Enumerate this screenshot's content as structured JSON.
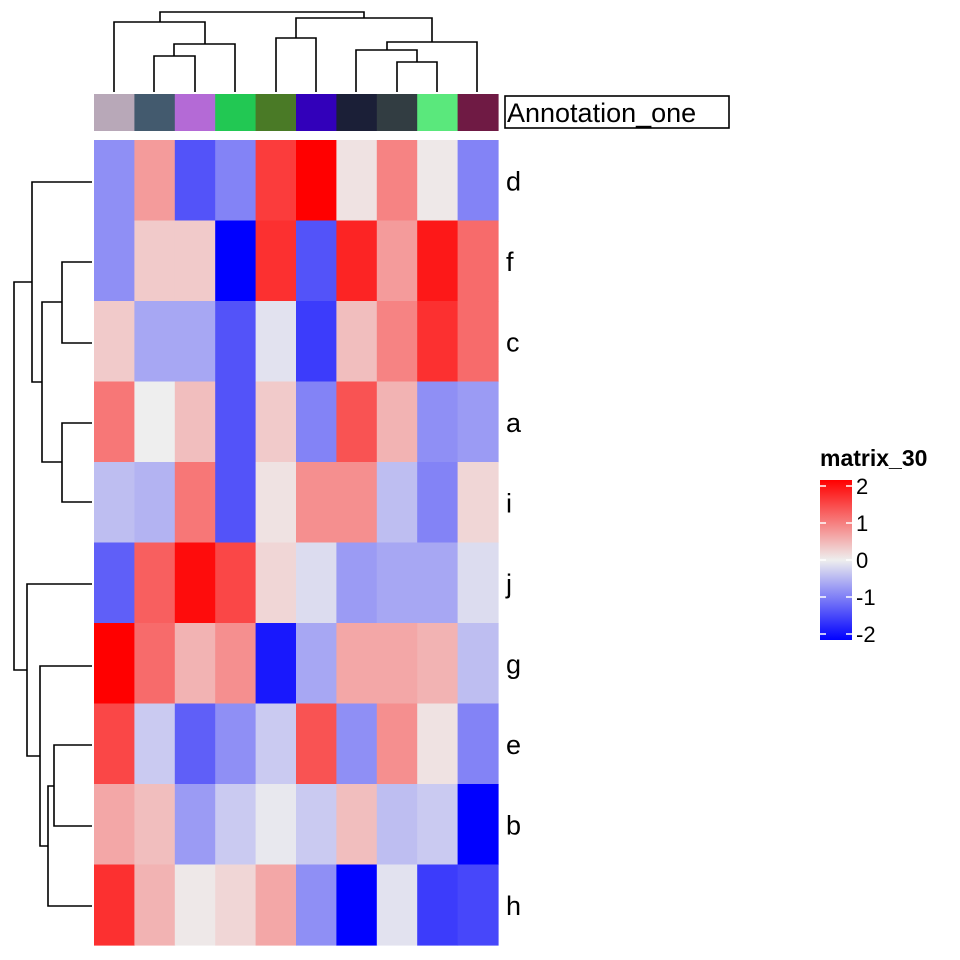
{
  "chart_data": {
    "type": "heatmap",
    "rows": [
      "d",
      "f",
      "c",
      "a",
      "i",
      "j",
      "g",
      "e",
      "b",
      "h"
    ],
    "columns": 10,
    "annotation": {
      "label": "Annotation_one",
      "colors": [
        "#B8A8B8",
        "#435A6E",
        "#B46AD6",
        "#22C853",
        "#4A7A26",
        "#3200BA",
        "#1B1F37",
        "#323D42",
        "#5AE87C",
        "#6F1A44"
      ]
    },
    "values": [
      [
        -0.8,
        0.7,
        -1.3,
        -0.9,
        1.5,
        2.0,
        0.1,
        0.9,
        0.05,
        -0.9
      ],
      [
        -0.8,
        0.3,
        0.3,
        -2.0,
        1.6,
        -1.3,
        1.7,
        0.7,
        1.8,
        1.1
      ],
      [
        0.3,
        -0.6,
        -0.6,
        -1.3,
        -0.1,
        -1.5,
        0.4,
        0.9,
        1.6,
        1.1
      ],
      [
        1.0,
        0.0,
        0.4,
        -1.3,
        0.3,
        -0.9,
        1.3,
        0.5,
        -0.8,
        -0.7
      ],
      [
        -0.4,
        -0.5,
        1.0,
        -1.3,
        0.1,
        0.8,
        0.8,
        -0.4,
        -0.9,
        0.2
      ],
      [
        -1.2,
        1.2,
        1.9,
        1.4,
        0.2,
        -0.15,
        -0.7,
        -0.6,
        -0.6,
        -0.15
      ],
      [
        2.0,
        1.1,
        0.5,
        0.8,
        -1.8,
        -0.6,
        0.6,
        0.6,
        0.5,
        -0.4
      ],
      [
        1.4,
        -0.3,
        -1.2,
        -0.8,
        -0.3,
        1.3,
        -0.8,
        0.8,
        0.1,
        -0.9
      ],
      [
        0.6,
        0.4,
        -0.7,
        -0.3,
        -0.05,
        -0.3,
        0.4,
        -0.4,
        -0.3,
        -2.3
      ],
      [
        1.6,
        0.5,
        0.05,
        0.2,
        0.6,
        -0.8,
        -2.0,
        -0.1,
        -1.5,
        -1.4
      ]
    ],
    "color_scale": {
      "low": "#0000FF",
      "mid": "#EEEEEE",
      "high": "#FF0000",
      "min": -2,
      "max": 2
    },
    "legend": {
      "title": "matrix_30",
      "ticks": [
        "2",
        "1",
        "0",
        "-1",
        "-2"
      ],
      "placement": "right"
    },
    "row_dendrogram": true,
    "column_dendrogram": true
  }
}
